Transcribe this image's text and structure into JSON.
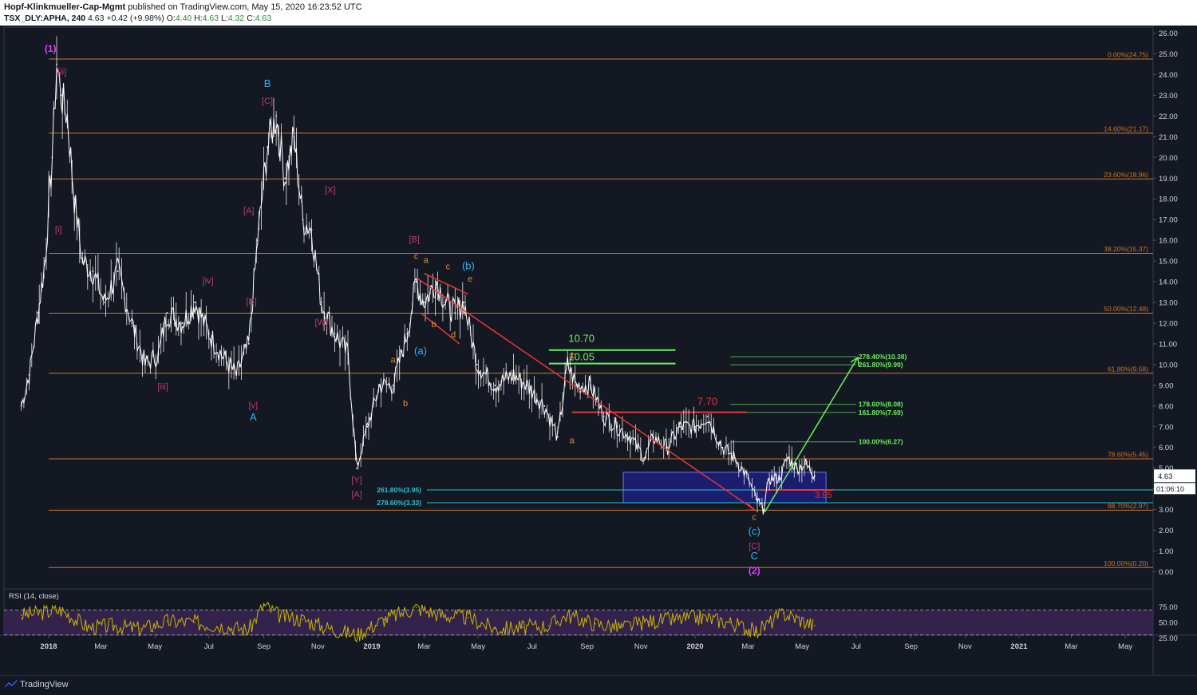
{
  "header": {
    "publisher": "Hopf-Klinkmueller-Cap-Mgmt",
    "published_text": "published on TradingView.com, May 15, 2020 16:23:52 UTC",
    "symbol": "TSX_DLY:APHA, 240",
    "last": "4.63",
    "change": "+0.42 (+9.98%)",
    "o_label": "O:",
    "o_value": "4.40",
    "h_label": "H:",
    "h_value": "4.63",
    "l_label": "L:",
    "l_value": "4.32",
    "c_label": "C:",
    "c_value": "4.63"
  },
  "footer": {
    "brand": "TradingView"
  },
  "colors": {
    "background": "#141823",
    "price": "#ffffff",
    "fib_orange": "#c8762c",
    "fib_green": "#4caf50",
    "fib_cyan": "#26c6da",
    "trend_red": "#e53935",
    "rsi": "#c8b400",
    "rsi_band": "#3b2656",
    "magenta": "#e040fb",
    "pink": "#ba3d70",
    "blue": "#29b6f6",
    "orange_label": "#e08e2b",
    "bright_green": "#69f05a"
  },
  "price_axis": {
    "ticks": [
      "26.00",
      "25.00",
      "24.00",
      "23.00",
      "22.00",
      "21.00",
      "20.00",
      "19.00",
      "18.00",
      "17.00",
      "16.00",
      "15.00",
      "14.00",
      "13.00",
      "12.00",
      "11.00",
      "10.00",
      "9.00",
      "8.00",
      "7.00",
      "6.00",
      "5.00",
      "4.00",
      "3.00",
      "2.00",
      "1.00",
      "0.00"
    ],
    "last_price": "4.63",
    "countdown": "01:06:10"
  },
  "time_axis": {
    "ticks": [
      "2018",
      "Mar",
      "May",
      "Jul",
      "Sep",
      "Nov",
      "2019",
      "Mar",
      "May",
      "Jul",
      "Sep",
      "Nov",
      "2020",
      "Mar",
      "May",
      "Jul",
      "Sep",
      "Nov",
      "2021",
      "Mar",
      "May"
    ]
  },
  "rsi": {
    "label": "RSI (14, close)",
    "ticks": [
      "75.00",
      "50.00",
      "25.00"
    ]
  },
  "fib_main": [
    {
      "label": "0.00%(24.75)",
      "price": 24.75
    },
    {
      "label": "14.60%(21.17)",
      "price": 21.17
    },
    {
      "label": "23.60%(18.96)",
      "price": 18.96
    },
    {
      "label": "38.20%(15.37)",
      "price": 15.37
    },
    {
      "label": "50.00%(12.48)",
      "price": 12.48
    },
    {
      "label": "61.80%(9.58)",
      "price": 9.58
    },
    {
      "label": "78.60%(5.45)",
      "price": 5.45
    },
    {
      "label": "88.70%(2.97)",
      "price": 2.97
    },
    {
      "label": "100.00%(0.20)",
      "price": 0.2
    }
  ],
  "fib_ext": [
    {
      "label": "278.40%(10.38)",
      "price": 10.38
    },
    {
      "label": "261.80%(9.99)",
      "price": 9.99
    },
    {
      "label": "178.60%(8.08)",
      "price": 8.08
    },
    {
      "label": "161.80%(7.69)",
      "price": 7.69
    },
    {
      "label": "100.00%(6.27)",
      "price": 6.27
    }
  ],
  "fib_support": [
    {
      "label": "261.80%(3.95)",
      "price": 3.95
    },
    {
      "label": "278.60%(3.33)",
      "price": 3.33
    }
  ],
  "targets": [
    {
      "label": "10.70",
      "price": 10.7
    },
    {
      "label": "10.05",
      "price": 10.05
    }
  ],
  "resistance": {
    "label": "7.70",
    "price": 7.7
  },
  "stop": {
    "label": "3.95",
    "price": 3.95
  },
  "wave_labels": [
    {
      "text": "(1)",
      "color": "magenta"
    },
    {
      "text": "[ii]",
      "color": "pink"
    },
    {
      "text": "[i]",
      "color": "pink"
    },
    {
      "text": "[iii]",
      "color": "pink"
    },
    {
      "text": "[iv]",
      "color": "pink"
    },
    {
      "text": "[v]",
      "color": "pink"
    },
    {
      "text": "A",
      "color": "blue"
    },
    {
      "text": "B",
      "color": "blue"
    },
    {
      "text": "[C]",
      "color": "pink"
    },
    {
      "text": "[A]",
      "color": "pink"
    },
    {
      "text": "[B]",
      "color": "pink"
    },
    {
      "text": "[X]",
      "color": "pink"
    },
    {
      "text": "[W]",
      "color": "pink"
    },
    {
      "text": "[Y]",
      "color": "pink"
    },
    {
      "text": "[A]",
      "color": "pink"
    },
    {
      "text": "[B]",
      "color": "pink"
    },
    {
      "text": "a",
      "color": "orange"
    },
    {
      "text": "b",
      "color": "orange"
    },
    {
      "text": "c",
      "color": "orange"
    },
    {
      "text": "(a)",
      "color": "blue"
    },
    {
      "text": "a",
      "color": "orange"
    },
    {
      "text": "b",
      "color": "orange"
    },
    {
      "text": "c",
      "color": "orange"
    },
    {
      "text": "d",
      "color": "orange"
    },
    {
      "text": "e",
      "color": "orange"
    },
    {
      "text": "(b)",
      "color": "blue"
    },
    {
      "text": "b",
      "color": "orange"
    },
    {
      "text": "a",
      "color": "orange"
    },
    {
      "text": "c",
      "color": "orange"
    },
    {
      "text": "(c)",
      "color": "blue"
    },
    {
      "text": "[C]",
      "color": "pink"
    },
    {
      "text": "C",
      "color": "blue"
    },
    {
      "text": "(2)",
      "color": "magenta"
    }
  ],
  "chart_data": {
    "type": "line",
    "series": [
      {
        "x": [
          "2017-12-01",
          "2017-12-10",
          "2017-12-20",
          "2017-12-28",
          "2018-01-05",
          "2018-01-10",
          "2018-01-15",
          "2018-01-22",
          "2018-01-30",
          "2018-02-08",
          "2018-02-20",
          "2018-03-05",
          "2018-03-20",
          "2018-04-05",
          "2018-04-20",
          "2018-05-05",
          "2018-05-15",
          "2018-06-01",
          "2018-06-15",
          "2018-07-01",
          "2018-07-15",
          "2018-08-01",
          "2018-08-15",
          "2018-08-25",
          "2018-09-05",
          "2018-09-15",
          "2018-09-25",
          "2018-10-05",
          "2018-10-15",
          "2018-10-25",
          "2018-11-05",
          "2018-11-20",
          "2018-12-05",
          "2018-12-15",
          "2018-12-27",
          "2019-01-10",
          "2019-01-25",
          "2019-02-10",
          "2019-02-20",
          "2019-03-01",
          "2019-03-15",
          "2019-03-25",
          "2019-04-05",
          "2019-04-15",
          "2019-04-30",
          "2019-05-20",
          "2019-06-10",
          "2019-06-25",
          "2019-07-15",
          "2019-07-30",
          "2019-08-10",
          "2019-08-20",
          "2019-09-05",
          "2019-09-20",
          "2019-10-05",
          "2019-10-20",
          "2019-11-05",
          "2019-11-15",
          "2019-12-01",
          "2019-12-15",
          "2020-01-01",
          "2020-01-15",
          "2020-02-01",
          "2020-02-15",
          "2020-03-01",
          "2020-03-10",
          "2020-03-18",
          "2020-03-25",
          "2020-04-05",
          "2020-04-15",
          "2020-04-25",
          "2020-05-05",
          "2020-05-15"
        ],
        "y": [
          8.0,
          9.5,
          12.5,
          15.0,
          20.0,
          24.5,
          23.0,
          22.0,
          18.0,
          15.0,
          14.5,
          13.0,
          14.5,
          12.0,
          10.0,
          10.5,
          12.5,
          12.0,
          13.0,
          11.5,
          10.5,
          9.5,
          11.0,
          16.0,
          20.5,
          22.0,
          19.0,
          21.0,
          17.0,
          16.5,
          13.0,
          11.5,
          10.5,
          5.0,
          7.0,
          9.0,
          9.0,
          11.5,
          14.0,
          13.0,
          14.0,
          13.0,
          12.5,
          13.0,
          10.0,
          9.0,
          9.5,
          9.0,
          8.0,
          6.5,
          10.0,
          9.0,
          9.0,
          7.5,
          7.0,
          6.5,
          5.5,
          6.5,
          6.0,
          7.0,
          7.0,
          7.5,
          6.0,
          5.5,
          4.5,
          3.5,
          3.0,
          4.5,
          4.5,
          5.5,
          5.0,
          5.2,
          4.63
        ],
        "unit": "CAD"
      }
    ],
    "ylim": [
      0,
      26
    ],
    "rsi_ylim": [
      0,
      100
    ],
    "rsi_x": [
      "2017-12-01",
      "2018-01-15",
      "2018-02-15",
      "2018-03-15",
      "2018-04-15",
      "2018-05-15",
      "2018-06-15",
      "2018-07-15",
      "2018-08-15",
      "2018-09-01",
      "2018-09-20",
      "2018-10-15",
      "2018-11-15",
      "2018-12-15",
      "2019-01-15",
      "2019-02-20",
      "2019-03-20",
      "2019-04-20",
      "2019-05-20",
      "2019-06-20",
      "2019-07-20",
      "2019-08-10",
      "2019-09-10",
      "2019-10-10",
      "2019-11-10",
      "2019-12-10",
      "2020-01-10",
      "2020-02-10",
      "2020-03-10",
      "2020-04-10",
      "2020-05-15"
    ],
    "rsi": [
      62,
      70,
      42,
      45,
      40,
      52,
      50,
      45,
      38,
      78,
      60,
      55,
      40,
      30,
      55,
      74,
      62,
      58,
      40,
      42,
      45,
      62,
      48,
      42,
      52,
      55,
      58,
      50,
      35,
      65,
      45
    ]
  }
}
